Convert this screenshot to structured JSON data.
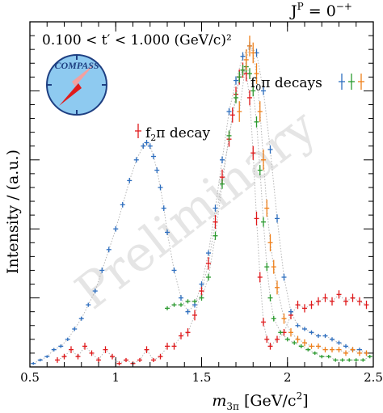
{
  "chart_data": {
    "type": "scatter",
    "title": "J^P = 0^-+",
    "title_parts": {
      "base": "J",
      "sup1": "P",
      "eq": " = 0",
      "sup2": "−+"
    },
    "tprime_label": "0.100  < t′ < 1.000 (GeV/c)²",
    "xlabel": "m_3π [GeV/c²]",
    "xlabel_parts": {
      "base": "m",
      "sub": "3π",
      "unit": " [GeV/c",
      "sup": "2",
      "close": "]"
    },
    "ylabel": "Intensity / (a.u.)",
    "xlim": [
      0.5,
      2.5
    ],
    "ylim": [
      0,
      1.0
    ],
    "x_ticks": [
      0.5,
      1,
      1.5,
      2,
      2.5
    ],
    "x_tick_labels": [
      "0.5",
      "1",
      "1.5",
      "2",
      "2.5"
    ],
    "watermark": "Preliminary",
    "logo_text": "COMPASS",
    "annotations": [
      {
        "text": "f₂π decay",
        "base": "f",
        "sub": "2",
        "rest": "π decay"
      },
      {
        "text": "f₀π decays",
        "base": "f",
        "sub": "0",
        "rest": "π decays"
      }
    ],
    "series": [
      {
        "name": "f2π decay",
        "color": "#e0191b",
        "x": [
          0.66,
          0.7,
          0.74,
          0.78,
          0.82,
          0.86,
          0.9,
          0.94,
          0.98,
          1.02,
          1.06,
          1.1,
          1.14,
          1.18,
          1.22,
          1.26,
          1.3,
          1.34,
          1.38,
          1.42,
          1.46,
          1.5,
          1.54,
          1.58,
          1.62,
          1.66,
          1.68,
          1.7,
          1.72,
          1.74,
          1.76,
          1.78,
          1.8,
          1.82,
          1.84,
          1.86,
          1.88,
          1.9,
          1.94,
          1.98,
          2.02,
          2.06,
          2.1,
          2.14,
          2.18,
          2.22,
          2.26,
          2.3,
          2.34,
          2.38,
          2.42,
          2.46
        ],
        "y": [
          0.02,
          0.03,
          0.05,
          0.03,
          0.06,
          0.04,
          0.02,
          0.05,
          0.03,
          0.01,
          0.02,
          0.01,
          0.02,
          0.05,
          0.02,
          0.03,
          0.06,
          0.06,
          0.09,
          0.1,
          0.15,
          0.22,
          0.3,
          0.42,
          0.55,
          0.66,
          0.73,
          0.79,
          0.84,
          0.86,
          0.85,
          0.78,
          0.62,
          0.43,
          0.26,
          0.13,
          0.08,
          0.06,
          0.08,
          0.1,
          0.15,
          0.18,
          0.17,
          0.18,
          0.19,
          0.2,
          0.19,
          0.21,
          0.19,
          0.2,
          0.19,
          0.18
        ],
        "yerr": [
          0.008,
          0.008,
          0.01,
          0.008,
          0.01,
          0.008,
          0.008,
          0.01,
          0.008,
          0.006,
          0.006,
          0.006,
          0.006,
          0.01,
          0.006,
          0.008,
          0.01,
          0.01,
          0.01,
          0.012,
          0.015,
          0.015,
          0.018,
          0.02,
          0.022,
          0.022,
          0.022,
          0.022,
          0.022,
          0.022,
          0.022,
          0.022,
          0.02,
          0.02,
          0.015,
          0.012,
          0.01,
          0.01,
          0.01,
          0.01,
          0.012,
          0.012,
          0.012,
          0.012,
          0.012,
          0.012,
          0.012,
          0.012,
          0.012,
          0.012,
          0.012,
          0.012
        ]
      },
      {
        "name": "f0π (blue)",
        "color": "#2d6ebf",
        "x": [
          0.52,
          0.56,
          0.6,
          0.64,
          0.68,
          0.72,
          0.76,
          0.8,
          0.84,
          0.88,
          0.92,
          0.96,
          1.0,
          1.04,
          1.08,
          1.12,
          1.16,
          1.18,
          1.2,
          1.22,
          1.24,
          1.26,
          1.28,
          1.3,
          1.34,
          1.38,
          1.42,
          1.46,
          1.5,
          1.54,
          1.58,
          1.62,
          1.66,
          1.7,
          1.74,
          1.78,
          1.82,
          1.86,
          1.9,
          1.94,
          1.98,
          2.02,
          2.06,
          2.1,
          2.14,
          2.18,
          2.22,
          2.26,
          2.3,
          2.34,
          2.38,
          2.42,
          2.46
        ],
        "y": [
          0.01,
          0.02,
          0.03,
          0.05,
          0.06,
          0.08,
          0.11,
          0.14,
          0.18,
          0.22,
          0.28,
          0.34,
          0.4,
          0.47,
          0.54,
          0.6,
          0.64,
          0.65,
          0.64,
          0.61,
          0.57,
          0.52,
          0.46,
          0.39,
          0.28,
          0.2,
          0.16,
          0.18,
          0.24,
          0.33,
          0.46,
          0.6,
          0.74,
          0.83,
          0.9,
          0.93,
          0.91,
          0.8,
          0.63,
          0.43,
          0.26,
          0.16,
          0.12,
          0.11,
          0.1,
          0.09,
          0.09,
          0.08,
          0.07,
          0.06,
          0.05,
          0.05,
          0.04
        ],
        "yerr": [
          0.004,
          0.004,
          0.004,
          0.005,
          0.005,
          0.005,
          0.006,
          0.006,
          0.006,
          0.007,
          0.008,
          0.008,
          0.008,
          0.008,
          0.008,
          0.008,
          0.008,
          0.008,
          0.008,
          0.008,
          0.008,
          0.008,
          0.008,
          0.008,
          0.008,
          0.008,
          0.008,
          0.008,
          0.008,
          0.008,
          0.01,
          0.01,
          0.01,
          0.012,
          0.012,
          0.012,
          0.012,
          0.012,
          0.012,
          0.012,
          0.01,
          0.008,
          0.006,
          0.006,
          0.006,
          0.006,
          0.006,
          0.006,
          0.006,
          0.006,
          0.006,
          0.006,
          0.006
        ]
      },
      {
        "name": "f0π (green)",
        "color": "#2a9a2e",
        "x": [
          1.3,
          1.34,
          1.38,
          1.42,
          1.46,
          1.5,
          1.54,
          1.58,
          1.62,
          1.66,
          1.7,
          1.72,
          1.74,
          1.76,
          1.78,
          1.8,
          1.82,
          1.84,
          1.86,
          1.88,
          1.9,
          1.92,
          1.96,
          2.0,
          2.04,
          2.08,
          2.12,
          2.16,
          2.2,
          2.24,
          2.28,
          2.32,
          2.36,
          2.4,
          2.44,
          2.48
        ],
        "y": [
          0.17,
          0.18,
          0.18,
          0.19,
          0.19,
          0.2,
          0.26,
          0.38,
          0.53,
          0.67,
          0.78,
          0.84,
          0.86,
          0.87,
          0.85,
          0.8,
          0.71,
          0.57,
          0.42,
          0.29,
          0.2,
          0.14,
          0.1,
          0.08,
          0.07,
          0.06,
          0.05,
          0.04,
          0.03,
          0.03,
          0.02,
          0.02,
          0.02,
          0.02,
          0.02,
          0.03
        ],
        "yerr": [
          0.006,
          0.006,
          0.006,
          0.006,
          0.006,
          0.008,
          0.01,
          0.012,
          0.014,
          0.015,
          0.016,
          0.016,
          0.016,
          0.016,
          0.016,
          0.016,
          0.016,
          0.015,
          0.014,
          0.012,
          0.01,
          0.008,
          0.006,
          0.006,
          0.006,
          0.006,
          0.005,
          0.005,
          0.005,
          0.005,
          0.005,
          0.005,
          0.005,
          0.005,
          0.005,
          0.005
        ]
      },
      {
        "name": "f0π (orange)",
        "color": "#ef7f1a",
        "x": [
          1.72,
          1.76,
          1.78,
          1.8,
          1.82,
          1.84,
          1.86,
          1.88,
          1.9,
          1.92,
          1.94,
          1.98,
          2.02,
          2.06,
          2.1,
          2.14,
          2.18,
          2.22,
          2.26,
          2.3,
          2.34,
          2.38,
          2.42,
          2.46
        ],
        "y": [
          0.74,
          0.89,
          0.93,
          0.91,
          0.85,
          0.74,
          0.6,
          0.46,
          0.36,
          0.29,
          0.23,
          0.14,
          0.1,
          0.08,
          0.07,
          0.06,
          0.06,
          0.05,
          0.05,
          0.05,
          0.04,
          0.05,
          0.04,
          0.04
        ],
        "yerr": [
          0.03,
          0.03,
          0.03,
          0.03,
          0.03,
          0.03,
          0.03,
          0.025,
          0.025,
          0.02,
          0.02,
          0.015,
          0.012,
          0.01,
          0.01,
          0.008,
          0.008,
          0.008,
          0.008,
          0.008,
          0.008,
          0.008,
          0.008,
          0.008
        ]
      }
    ]
  }
}
